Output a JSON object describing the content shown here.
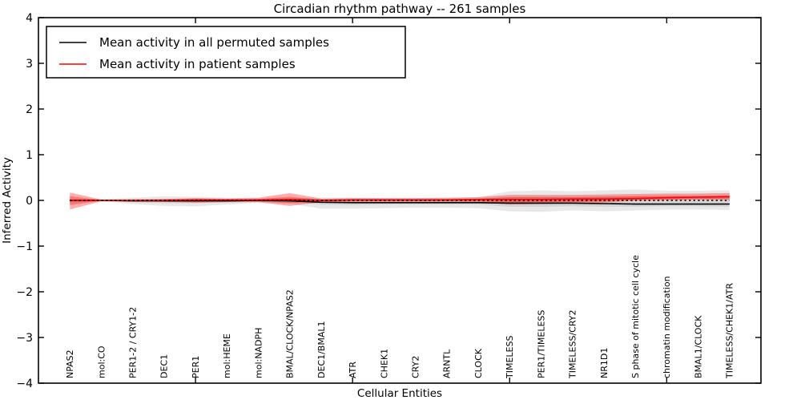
{
  "title": "Circadian rhythm pathway -- 261 samples",
  "axes": {
    "xlabel": "Cellular Entities",
    "ylabel": "Inferred Activity",
    "ylim": [
      -4,
      4
    ],
    "yticks": [
      4,
      3,
      2,
      1,
      0,
      -1,
      -2,
      -3,
      -4
    ],
    "x_major_ticks": [
      5,
      10,
      15,
      20
    ]
  },
  "legend": {
    "items": [
      {
        "label": "Mean activity in all permuted samples",
        "color": "#000000"
      },
      {
        "label": "Mean activity in patient samples",
        "color": "#ff0000"
      }
    ]
  },
  "colors": {
    "patient_line": "#ff0000",
    "permuted_line": "#000000",
    "zero_line": "#000000",
    "permuted_band": "rgba(128,128,128,0.18)",
    "patient_band": "rgba(255,0,0,0.32)",
    "patient_band_inner": "rgba(255,0,0,0.30)"
  },
  "chart_data": {
    "type": "line",
    "title": "Circadian rhythm pathway -- 261 samples",
    "xlabel": "Cellular Entities",
    "ylabel": "Inferred Activity",
    "ylim": [
      -4,
      4
    ],
    "legend_position": "upper left",
    "categories": [
      "NPAS2",
      "mol:CO",
      "PER1-2 / CRY1-2",
      "DEC1",
      "PER1",
      "mol:HEME",
      "mol:NADPH",
      "BMAL/CLOCK/NPAS2",
      "DEC1/BMAL1",
      "ATR",
      "CHEK1",
      "CRY2",
      "ARNTL",
      "CLOCK",
      "TIMELESS",
      "PER1/TIMELESS",
      "TIMELESS/CRY2",
      "NR1D1",
      "S phase of mitotic cell cycle",
      "chromatin modification",
      "BMAL1/CLOCK",
      "TIMELESS/CHEK1/ATR"
    ],
    "series": [
      {
        "name": "Mean activity in all permuted samples",
        "color": "#000000",
        "values": [
          0,
          0,
          -0.01,
          -0.01,
          -0.01,
          -0.01,
          0,
          -0.01,
          -0.04,
          -0.05,
          -0.05,
          -0.05,
          -0.05,
          -0.05,
          -0.06,
          -0.06,
          -0.06,
          -0.07,
          -0.08,
          -0.08,
          -0.08,
          -0.08
        ]
      },
      {
        "name": "Mean activity in patient samples",
        "color": "#ff0000",
        "values": [
          0,
          0,
          0,
          0,
          0.01,
          0.01,
          0.01,
          0.02,
          0,
          0.01,
          0.01,
          0.01,
          0.01,
          0.02,
          0.02,
          0.02,
          0.03,
          0.03,
          0.04,
          0.06,
          0.07,
          0.08
        ]
      }
    ],
    "bands": {
      "permuted_outer_hi": [
        0.04,
        0.02,
        0.06,
        0.09,
        0.08,
        0.06,
        0.04,
        0.05,
        0.06,
        0.06,
        0.05,
        0.05,
        0.05,
        0.07,
        0.2,
        0.22,
        0.2,
        0.22,
        0.24,
        0.21,
        0.21,
        0.22
      ],
      "permuted_outer_lo": [
        -0.05,
        -0.02,
        -0.08,
        -0.12,
        -0.13,
        -0.09,
        -0.05,
        -0.07,
        -0.18,
        -0.18,
        -0.17,
        -0.16,
        -0.16,
        -0.17,
        -0.24,
        -0.25,
        -0.22,
        -0.24,
        -0.22,
        -0.2,
        -0.2,
        -0.21
      ],
      "permuted_inner_hi": [
        0.02,
        0.01,
        0.03,
        0.04,
        0.04,
        0.03,
        0.02,
        0.02,
        0.02,
        0.02,
        0.02,
        0.02,
        0.02,
        0.03,
        0.08,
        0.09,
        0.08,
        0.09,
        0.09,
        0.08,
        0.08,
        0.09
      ],
      "permuted_inner_lo": [
        -0.03,
        -0.01,
        -0.04,
        -0.06,
        -0.06,
        -0.04,
        -0.03,
        -0.03,
        -0.09,
        -0.1,
        -0.09,
        -0.09,
        -0.09,
        -0.09,
        -0.14,
        -0.14,
        -0.13,
        -0.14,
        -0.14,
        -0.13,
        -0.13,
        -0.14
      ],
      "patient_outer_hi": [
        0.17,
        0.02,
        0.02,
        0.03,
        0.05,
        0.04,
        0.06,
        0.16,
        0.04,
        0.05,
        0.05,
        0.05,
        0.06,
        0.07,
        0.12,
        0.12,
        0.12,
        0.13,
        0.14,
        0.15,
        0.15,
        0.16
      ],
      "patient_outer_lo": [
        -0.2,
        -0.02,
        -0.02,
        -0.03,
        -0.05,
        -0.04,
        -0.04,
        -0.12,
        -0.04,
        -0.03,
        -0.03,
        -0.03,
        -0.03,
        -0.04,
        -0.09,
        -0.08,
        -0.06,
        -0.05,
        0.0,
        0.01,
        0.02,
        0.01
      ],
      "patient_inner_hi": [
        0.09,
        0.01,
        0.01,
        0.02,
        0.03,
        0.02,
        0.03,
        0.08,
        0.02,
        0.03,
        0.03,
        0.03,
        0.03,
        0.04,
        0.07,
        0.07,
        0.07,
        0.08,
        0.09,
        0.1,
        0.1,
        0.11
      ],
      "patient_inner_lo": [
        -0.1,
        -0.01,
        -0.01,
        -0.02,
        -0.03,
        -0.02,
        -0.02,
        -0.06,
        -0.02,
        -0.01,
        -0.01,
        -0.01,
        -0.01,
        -0.02,
        -0.05,
        -0.04,
        -0.03,
        -0.02,
        0.01,
        0.02,
        0.03,
        0.04
      ],
      "zero_reference": 0
    }
  }
}
